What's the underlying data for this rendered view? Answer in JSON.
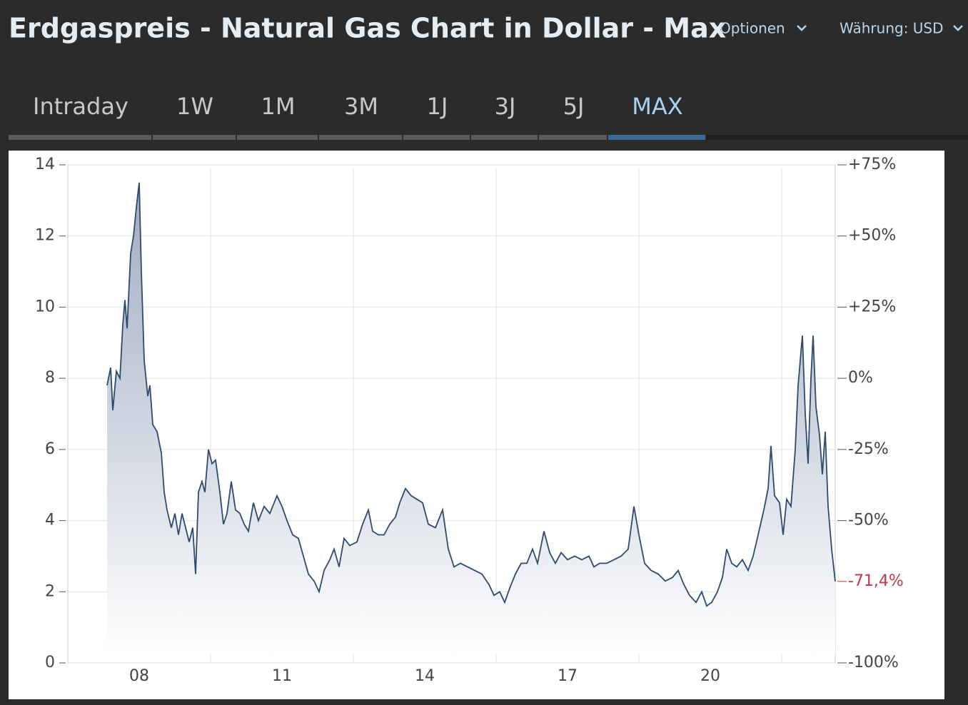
{
  "header": {
    "title": "Erdgaspreis - Natural Gas Chart in Dollar - Max",
    "options": "Optionen",
    "currency": "Währung: USD"
  },
  "tabs": [
    {
      "label": "Intraday"
    },
    {
      "label": "1W"
    },
    {
      "label": "1M"
    },
    {
      "label": "3M"
    },
    {
      "label": "1J"
    },
    {
      "label": "3J"
    },
    {
      "label": "5J"
    },
    {
      "label": "MAX",
      "active": true
    }
  ],
  "chart_data": {
    "type": "area",
    "series": [
      {
        "color": "#2e4a6e",
        "x": [
          2007.825,
          2007.9,
          2007.945,
          2008.02,
          2008.095,
          2008.155,
          2008.2,
          2008.245,
          2008.32,
          2008.38,
          2008.44,
          2008.5,
          2008.545,
          2008.605,
          2008.68,
          2008.725,
          2008.785,
          2008.875,
          2008.965,
          2009.025,
          2009.085,
          2009.175,
          2009.25,
          2009.325,
          2009.4,
          2009.475,
          2009.55,
          2009.625,
          2009.685,
          2009.745,
          2009.82,
          2009.88,
          2009.955,
          2010.03,
          2010.105,
          2010.195,
          2010.27,
          2010.345,
          2010.435,
          2010.525,
          2010.615,
          2010.705,
          2010.795,
          2010.9,
          2011.005,
          2011.125,
          2011.245,
          2011.395,
          2011.5,
          2011.605,
          2011.725,
          2011.845,
          2011.95,
          2012.055,
          2012.175,
          2012.28,
          2012.385,
          2012.505,
          2012.595,
          2012.7,
          2012.805,
          2012.925,
          2013.075,
          2013.195,
          2013.315,
          2013.405,
          2013.525,
          2013.645,
          2013.765,
          2013.885,
          2013.975,
          2014.095,
          2014.215,
          2014.335,
          2014.455,
          2014.575,
          2014.725,
          2014.875,
          2014.995,
          2015.115,
          2015.25,
          2015.4,
          2015.55,
          2015.7,
          2015.85,
          2015.955,
          2016.075,
          2016.18,
          2016.285,
          2016.405,
          2016.525,
          2016.645,
          2016.765,
          2016.87,
          2017.005,
          2017.125,
          2017.245,
          2017.365,
          2017.5,
          2017.65,
          2017.8,
          2017.95,
          2018.055,
          2018.175,
          2018.325,
          2018.475,
          2018.625,
          2018.775,
          2018.895,
          2019.0,
          2019.12,
          2019.255,
          2019.405,
          2019.555,
          2019.705,
          2019.825,
          2019.945,
          2020.065,
          2020.2,
          2020.32,
          2020.425,
          2020.53,
          2020.65,
          2020.755,
          2020.845,
          2020.95,
          2021.055,
          2021.175,
          2021.295,
          2021.4,
          2021.505,
          2021.625,
          2021.715,
          2021.775,
          2021.85,
          2021.955,
          2022.03,
          2022.105,
          2022.195,
          2022.285,
          2022.345,
          2022.435,
          2022.495,
          2022.555,
          2022.615,
          2022.66,
          2022.72,
          2022.795,
          2022.855,
          2022.915,
          2022.975,
          2023.05,
          2023.125
        ],
        "values": [
          7.8,
          8.3,
          7.1,
          8.2,
          8.0,
          9.5,
          10.2,
          9.4,
          11.5,
          12.0,
          12.8,
          13.5,
          11.0,
          8.5,
          7.5,
          7.8,
          6.7,
          6.5,
          5.9,
          4.8,
          4.3,
          3.8,
          4.2,
          3.6,
          4.2,
          3.8,
          3.4,
          3.8,
          2.5,
          4.8,
          5.1,
          4.8,
          6.0,
          5.6,
          5.7,
          4.8,
          3.9,
          4.2,
          5.1,
          4.3,
          4.2,
          3.9,
          3.7,
          4.5,
          4.0,
          4.4,
          4.2,
          4.7,
          4.4,
          4.0,
          3.6,
          3.5,
          3.0,
          2.5,
          2.3,
          2.0,
          2.6,
          2.9,
          3.2,
          2.7,
          3.5,
          3.3,
          3.4,
          3.9,
          4.3,
          3.7,
          3.6,
          3.6,
          3.9,
          4.1,
          4.5,
          4.9,
          4.7,
          4.6,
          4.5,
          3.9,
          3.8,
          4.3,
          3.2,
          2.7,
          2.8,
          2.7,
          2.6,
          2.5,
          2.2,
          1.9,
          2.0,
          1.7,
          2.1,
          2.5,
          2.8,
          2.8,
          3.2,
          2.8,
          3.7,
          3.1,
          2.8,
          3.1,
          2.9,
          3.0,
          2.9,
          3.0,
          2.7,
          2.8,
          2.8,
          2.9,
          3.0,
          3.2,
          4.4,
          3.6,
          2.8,
          2.6,
          2.5,
          2.3,
          2.4,
          2.6,
          2.2,
          1.9,
          1.7,
          2.0,
          1.6,
          1.7,
          2.0,
          2.4,
          3.2,
          2.8,
          2.7,
          2.9,
          2.6,
          3.0,
          3.6,
          4.3,
          4.9,
          6.1,
          4.7,
          4.5,
          3.6,
          4.6,
          4.4,
          6.0,
          7.8,
          9.2,
          7.0,
          5.6,
          8.0,
          9.2,
          7.2,
          6.4,
          5.3,
          6.5,
          4.4,
          3.2,
          2.29
        ]
      }
    ],
    "last_value_label": "-71,4%",
    "xlim": [
      2007,
      2023.125
    ],
    "xticks": [
      {
        "value": 2008.5,
        "label": "08"
      },
      {
        "value": 2011.5,
        "label": "11"
      },
      {
        "value": 2014.5,
        "label": "14"
      },
      {
        "value": 2017.5,
        "label": "17"
      },
      {
        "value": 2020.5,
        "label": "20"
      }
    ],
    "xgrid": [
      2010,
      2013,
      2016,
      2019,
      2022
    ],
    "ylim": [
      0,
      14
    ],
    "yticks": [
      0,
      2,
      4,
      6,
      8,
      10,
      12,
      14
    ],
    "y2lim": [
      -100,
      75
    ],
    "y2ticks": [
      {
        "value": 75,
        "label": "+75%"
      },
      {
        "value": 50,
        "label": "+50%"
      },
      {
        "value": 25,
        "label": "+25%"
      },
      {
        "value": 0,
        "label": "0%"
      },
      {
        "value": -25,
        "label": "-25%"
      },
      {
        "value": -50,
        "label": "-50%"
      },
      {
        "value": -100,
        "label": "-100%"
      }
    ],
    "grid": true
  }
}
